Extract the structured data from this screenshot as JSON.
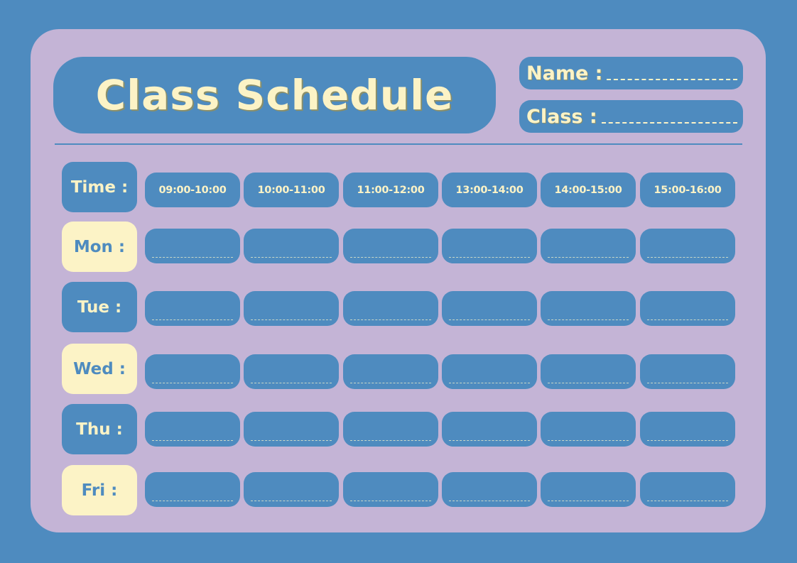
{
  "title": "Class Schedule",
  "fields": {
    "name_label": "Name :",
    "class_label": "Class :",
    "name_value": "",
    "class_value": ""
  },
  "time_label": "Time :",
  "times": [
    "09:00-10:00",
    "10:00-11:00",
    "11:00-12:00",
    "13:00-14:00",
    "14:00-15:00",
    "15:00-16:00"
  ],
  "days": [
    {
      "label": "Mon :",
      "entries": [
        "",
        "",
        "",
        "",
        "",
        ""
      ]
    },
    {
      "label": "Tue :",
      "entries": [
        "",
        "",
        "",
        "",
        "",
        ""
      ]
    },
    {
      "label": "Wed :",
      "entries": [
        "",
        "",
        "",
        "",
        "",
        ""
      ]
    },
    {
      "label": "Thu :",
      "entries": [
        "",
        "",
        "",
        "",
        "",
        ""
      ]
    },
    {
      "label": "Fri :",
      "entries": [
        "",
        "",
        "",
        "",
        "",
        ""
      ]
    }
  ],
  "colors": {
    "background": "#4e8bbf",
    "card": "#c4b4d6",
    "cream": "#fcf3c6"
  }
}
